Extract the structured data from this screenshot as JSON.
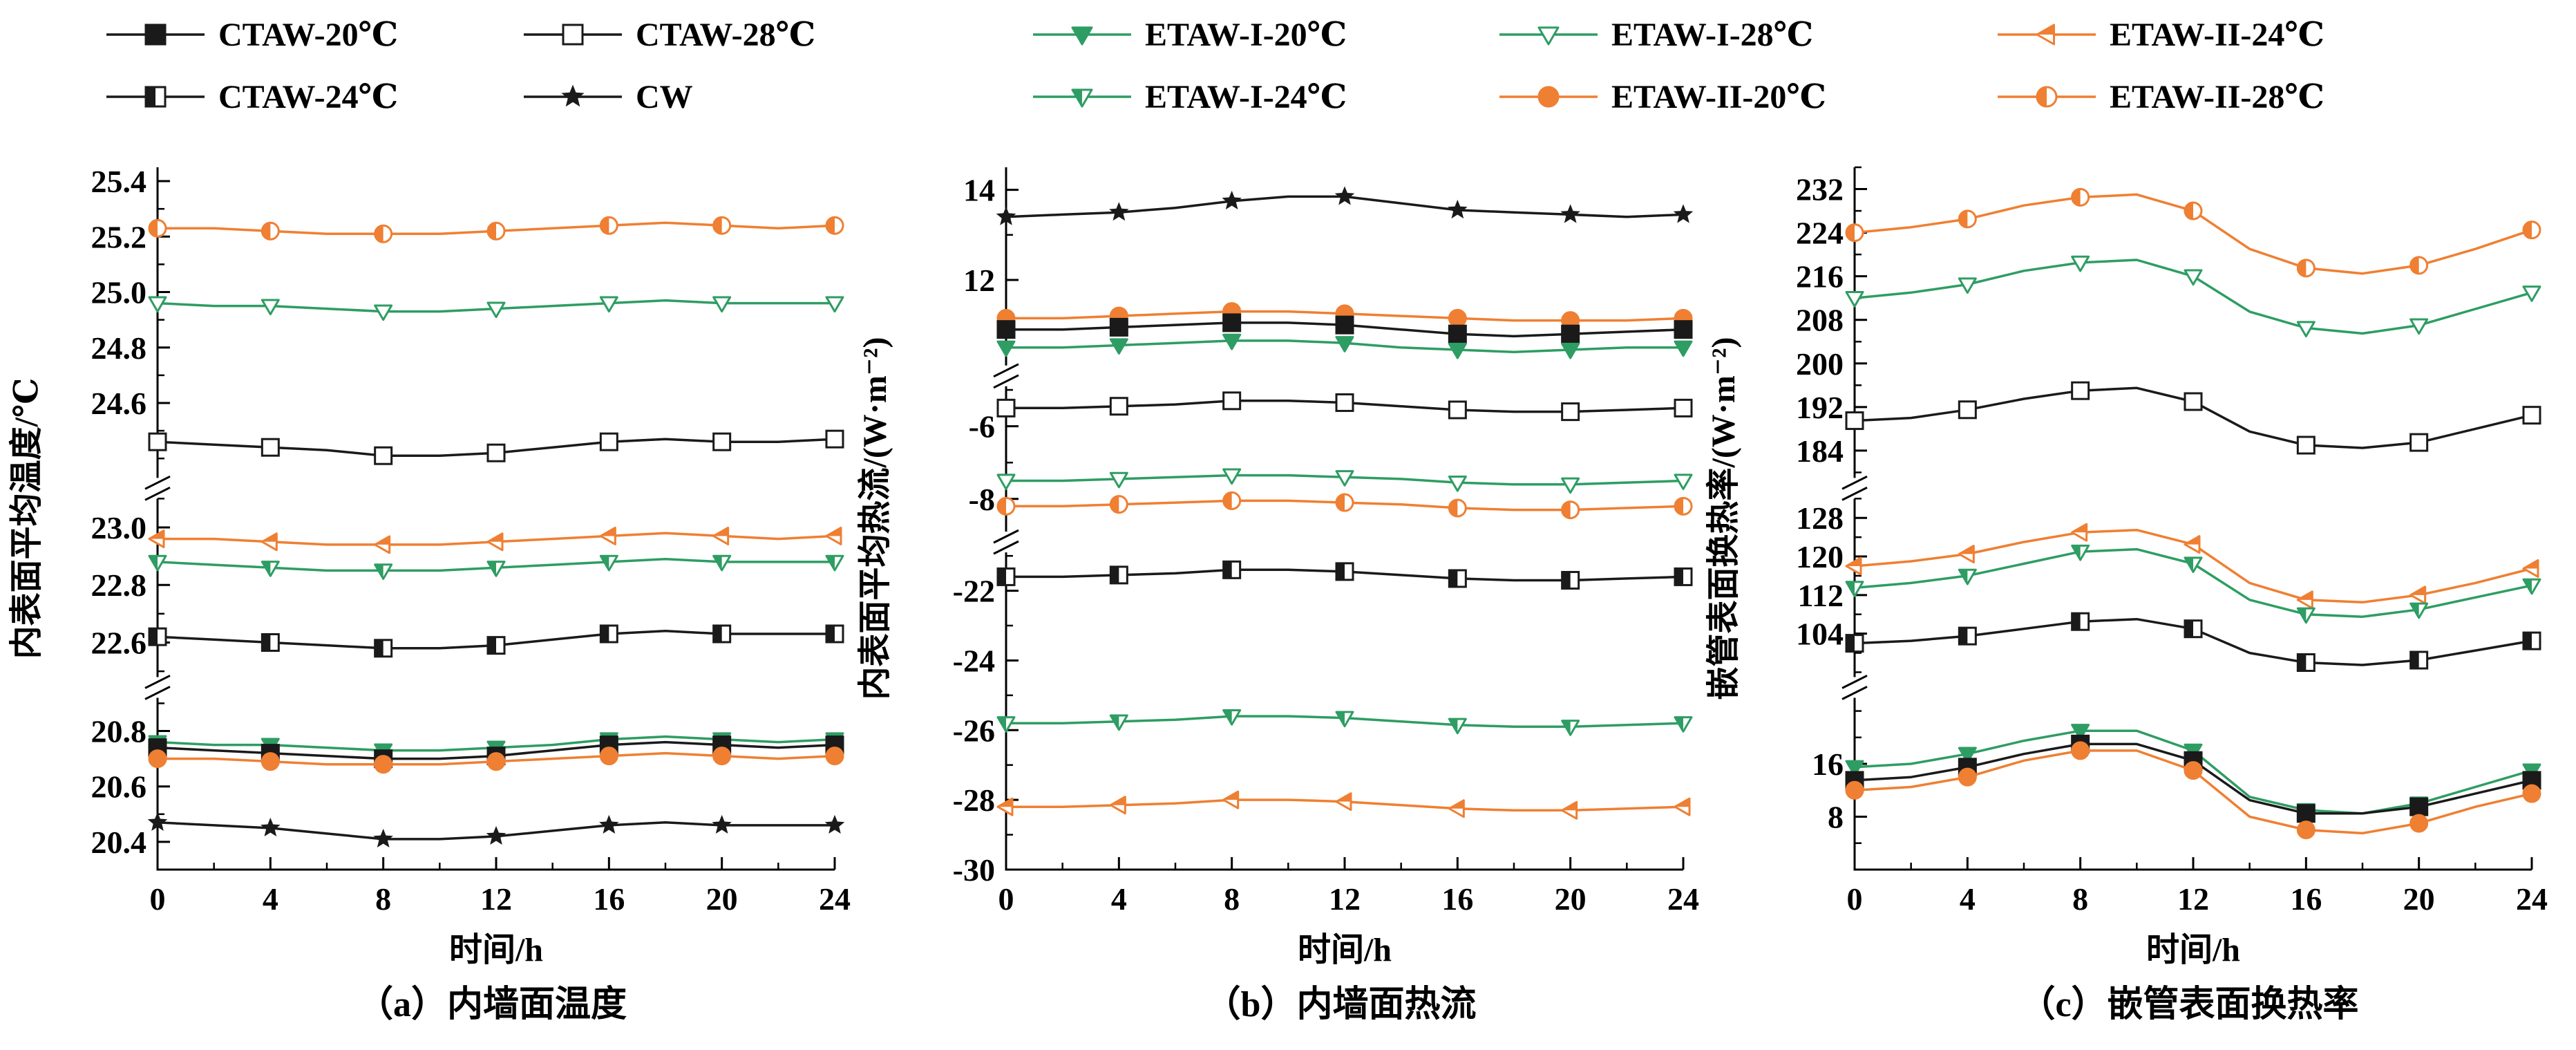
{
  "legend": {
    "items": [
      {
        "label": "CTAW-20℃",
        "marker": "square-filled",
        "color": "#1a1a1a"
      },
      {
        "label": "CTAW-28℃",
        "marker": "square-open",
        "color": "#1a1a1a"
      },
      {
        "label": "ETAW-I-20℃",
        "marker": "tri-down-filled",
        "color": "#2e9d63"
      },
      {
        "label": "ETAW-I-28℃",
        "marker": "tri-down-open",
        "color": "#2e9d63"
      },
      {
        "label": "ETAW-II-24℃",
        "marker": "tri-left-half",
        "color": "#ef7f32"
      },
      {
        "label": "CTAW-24℃",
        "marker": "square-half",
        "color": "#1a1a1a"
      },
      {
        "label": "CW",
        "marker": "star",
        "color": "#1a1a1a"
      },
      {
        "label": "ETAW-I-24℃",
        "marker": "tri-down-half",
        "color": "#2e9d63"
      },
      {
        "label": "ETAW-II-20℃",
        "marker": "circle-filled",
        "color": "#ef7f32"
      },
      {
        "label": "ETAW-II-28℃",
        "marker": "circle-half",
        "color": "#ef7f32"
      }
    ]
  },
  "chart_data": [
    {
      "type": "line",
      "panel": "a",
      "caption": "（a）内墙面温度",
      "xlabel": "时间/h",
      "ylabel": "内表面平均温度/℃",
      "x": [
        0,
        2,
        4,
        6,
        8,
        10,
        12,
        14,
        16,
        18,
        20,
        22,
        24
      ],
      "x_range": [
        0,
        24
      ],
      "x_ticks": [
        0,
        4,
        8,
        12,
        16,
        20,
        24
      ],
      "x_minor": 2,
      "tick_decimals": 1,
      "segments": [
        {
          "range": [
            24.33,
            25.45
          ],
          "ticks": [
            25.4,
            25.2,
            25.0,
            24.8,
            24.6
          ],
          "minor": 0.1,
          "frac": 0.47
        },
        {
          "range": [
            22.48,
            23.1
          ],
          "ticks": [
            23.0,
            22.8,
            22.6
          ],
          "minor": 0.1,
          "frac": 0.27
        },
        {
          "range": [
            20.3,
            20.92
          ],
          "ticks": [
            20.8,
            20.6,
            20.4
          ],
          "minor": 0.1,
          "frac": 0.26
        }
      ],
      "series": [
        {
          "name": "ETAW-II-28℃",
          "color": "#ef7f32",
          "marker": "circle-half",
          "segment": 0,
          "values": [
            25.23,
            25.23,
            25.22,
            25.21,
            25.21,
            25.21,
            25.22,
            25.23,
            25.24,
            25.25,
            25.24,
            25.23,
            25.24
          ]
        },
        {
          "name": "ETAW-I-28℃",
          "color": "#2e9d63",
          "marker": "tri-down-open",
          "segment": 0,
          "values": [
            24.96,
            24.95,
            24.95,
            24.94,
            24.93,
            24.93,
            24.94,
            24.95,
            24.96,
            24.97,
            24.96,
            24.96,
            24.96
          ]
        },
        {
          "name": "CTAW-28℃",
          "color": "#1a1a1a",
          "marker": "square-open",
          "segment": 0,
          "values": [
            24.46,
            24.45,
            24.44,
            24.43,
            24.41,
            24.41,
            24.42,
            24.44,
            24.46,
            24.47,
            24.46,
            24.46,
            24.47
          ]
        },
        {
          "name": "ETAW-II-24℃",
          "color": "#ef7f32",
          "marker": "tri-left-half",
          "segment": 1,
          "values": [
            22.96,
            22.96,
            22.95,
            22.94,
            22.94,
            22.94,
            22.95,
            22.96,
            22.97,
            22.98,
            22.97,
            22.96,
            22.97
          ]
        },
        {
          "name": "ETAW-I-24℃",
          "color": "#2e9d63",
          "marker": "tri-down-half",
          "segment": 1,
          "values": [
            22.88,
            22.87,
            22.86,
            22.85,
            22.85,
            22.85,
            22.86,
            22.87,
            22.88,
            22.89,
            22.88,
            22.88,
            22.88
          ]
        },
        {
          "name": "CTAW-24℃",
          "color": "#1a1a1a",
          "marker": "square-half",
          "segment": 1,
          "values": [
            22.62,
            22.61,
            22.6,
            22.59,
            22.58,
            22.58,
            22.59,
            22.61,
            22.63,
            22.64,
            22.63,
            22.63,
            22.63
          ]
        },
        {
          "name": "ETAW-I-20℃",
          "color": "#2e9d63",
          "marker": "tri-down-filled",
          "segment": 2,
          "values": [
            20.76,
            20.75,
            20.75,
            20.74,
            20.73,
            20.73,
            20.74,
            20.75,
            20.77,
            20.78,
            20.77,
            20.76,
            20.77
          ]
        },
        {
          "name": "CTAW-20℃",
          "color": "#1a1a1a",
          "marker": "square-filled",
          "segment": 2,
          "values": [
            20.74,
            20.73,
            20.72,
            20.71,
            20.7,
            20.7,
            20.71,
            20.73,
            20.75,
            20.76,
            20.75,
            20.74,
            20.75
          ]
        },
        {
          "name": "ETAW-II-20℃",
          "color": "#ef7f32",
          "marker": "circle-filled",
          "segment": 2,
          "values": [
            20.7,
            20.7,
            20.69,
            20.68,
            20.68,
            20.68,
            20.69,
            20.7,
            20.71,
            20.72,
            20.71,
            20.7,
            20.71
          ]
        },
        {
          "name": "CW",
          "color": "#1a1a1a",
          "marker": "star",
          "segment": 2,
          "values": [
            20.47,
            20.46,
            20.45,
            20.43,
            20.41,
            20.41,
            20.42,
            20.44,
            20.46,
            20.47,
            20.46,
            20.46,
            20.46
          ]
        }
      ]
    },
    {
      "type": "line",
      "panel": "b",
      "caption": "（b）内墙面热流",
      "xlabel": "时间/h",
      "ylabel": "内表面平均热流/(W·m⁻²)",
      "x": [
        0,
        2,
        4,
        6,
        8,
        10,
        12,
        14,
        16,
        18,
        20,
        22,
        24
      ],
      "x_range": [
        0,
        24
      ],
      "x_ticks": [
        0,
        4,
        8,
        12,
        16,
        20,
        24
      ],
      "x_minor": 2,
      "tick_decimals": 0,
      "segments": [
        {
          "range": [
            10.1,
            14.5
          ],
          "ticks": [
            14,
            12
          ],
          "minor": 1,
          "frac": 0.3
        },
        {
          "range": [
            -8.9,
            -4.9
          ],
          "ticks": [
            -6,
            -8
          ],
          "minor": 1,
          "frac": 0.22
        },
        {
          "range": [
            -30,
            -20.9
          ],
          "ticks": [
            -22,
            -24,
            -26,
            -28,
            -30
          ],
          "minor": 1,
          "frac": 0.48
        }
      ],
      "series": [
        {
          "name": "CW",
          "color": "#1a1a1a",
          "marker": "star",
          "segment": 0,
          "values": [
            13.4,
            13.45,
            13.5,
            13.6,
            13.75,
            13.85,
            13.85,
            13.7,
            13.55,
            13.5,
            13.45,
            13.4,
            13.45
          ]
        },
        {
          "name": "ETAW-II-20℃",
          "color": "#ef7f32",
          "marker": "circle-filled",
          "segment": 0,
          "values": [
            11.15,
            11.15,
            11.2,
            11.25,
            11.3,
            11.3,
            11.25,
            11.2,
            11.15,
            11.1,
            11.1,
            11.1,
            11.15
          ]
        },
        {
          "name": "CTAW-20℃",
          "color": "#1a1a1a",
          "marker": "square-filled",
          "segment": 0,
          "values": [
            10.9,
            10.9,
            10.95,
            11.0,
            11.05,
            11.05,
            11.0,
            10.9,
            10.8,
            10.75,
            10.8,
            10.85,
            10.9
          ]
        },
        {
          "name": "ETAW-I-20℃",
          "color": "#2e9d63",
          "marker": "tri-down-filled",
          "segment": 0,
          "values": [
            10.5,
            10.5,
            10.55,
            10.6,
            10.65,
            10.65,
            10.6,
            10.5,
            10.45,
            10.4,
            10.45,
            10.5,
            10.5
          ]
        },
        {
          "name": "CTAW-28℃",
          "color": "#1a1a1a",
          "marker": "square-open",
          "segment": 1,
          "values": [
            -5.5,
            -5.5,
            -5.45,
            -5.4,
            -5.3,
            -5.3,
            -5.35,
            -5.45,
            -5.55,
            -5.6,
            -5.6,
            -5.55,
            -5.5
          ]
        },
        {
          "name": "ETAW-I-28℃",
          "color": "#2e9d63",
          "marker": "tri-down-open",
          "segment": 1,
          "values": [
            -7.5,
            -7.5,
            -7.45,
            -7.4,
            -7.35,
            -7.35,
            -7.4,
            -7.45,
            -7.55,
            -7.6,
            -7.6,
            -7.55,
            -7.5
          ]
        },
        {
          "name": "ETAW-II-28℃",
          "color": "#ef7f32",
          "marker": "circle-half",
          "segment": 1,
          "values": [
            -8.2,
            -8.2,
            -8.15,
            -8.1,
            -8.05,
            -8.05,
            -8.1,
            -8.15,
            -8.25,
            -8.3,
            -8.3,
            -8.25,
            -8.2
          ]
        },
        {
          "name": "CTAW-24℃",
          "color": "#1a1a1a",
          "marker": "square-half",
          "segment": 2,
          "values": [
            -21.6,
            -21.6,
            -21.55,
            -21.5,
            -21.4,
            -21.4,
            -21.45,
            -21.55,
            -21.65,
            -21.7,
            -21.7,
            -21.65,
            -21.6
          ]
        },
        {
          "name": "ETAW-I-24℃",
          "color": "#2e9d63",
          "marker": "tri-down-half",
          "segment": 2,
          "values": [
            -25.8,
            -25.8,
            -25.75,
            -25.7,
            -25.6,
            -25.6,
            -25.65,
            -25.75,
            -25.85,
            -25.9,
            -25.9,
            -25.85,
            -25.8
          ]
        },
        {
          "name": "ETAW-II-24℃",
          "color": "#ef7f32",
          "marker": "tri-left-half",
          "segment": 2,
          "values": [
            -28.2,
            -28.2,
            -28.15,
            -28.1,
            -28.0,
            -28.0,
            -28.05,
            -28.15,
            -28.25,
            -28.3,
            -28.3,
            -28.25,
            -28.2
          ]
        }
      ]
    },
    {
      "type": "line",
      "panel": "c",
      "caption": "（c）嵌管表面换热率",
      "xlabel": "时间/h",
      "ylabel": "嵌管表面换热率/(W·m⁻²)",
      "x": [
        0,
        2,
        4,
        6,
        8,
        10,
        12,
        14,
        16,
        18,
        20,
        22,
        24
      ],
      "x_range": [
        0,
        24
      ],
      "x_ticks": [
        0,
        4,
        8,
        12,
        16,
        20,
        24
      ],
      "x_minor": 2,
      "tick_decimals": 0,
      "segments": [
        {
          "range": [
            179,
            236
          ],
          "ticks": [
            232,
            224,
            216,
            208,
            200,
            192,
            184
          ],
          "minor": 4,
          "frac": 0.47
        },
        {
          "range": [
            95,
            132
          ],
          "ticks": [
            128,
            120,
            112,
            104
          ],
          "minor": 4,
          "frac": 0.27
        },
        {
          "range": [
            0,
            26
          ],
          "ticks": [
            16,
            8
          ],
          "minor": 4,
          "frac": 0.26
        }
      ],
      "series": [
        {
          "name": "ETAW-II-28℃",
          "color": "#ef7f32",
          "marker": "circle-half",
          "segment": 0,
          "values": [
            224,
            225,
            226.5,
            229,
            230.5,
            231,
            228,
            221,
            217.5,
            216.5,
            218,
            221,
            224.5
          ]
        },
        {
          "name": "ETAW-I-28℃",
          "color": "#2e9d63",
          "marker": "tri-down-open",
          "segment": 0,
          "values": [
            212,
            213,
            214.5,
            217,
            218.5,
            219,
            216,
            209.5,
            206.5,
            205.5,
            207,
            210,
            213
          ]
        },
        {
          "name": "CTAW-28℃",
          "color": "#1a1a1a",
          "marker": "square-open",
          "segment": 0,
          "values": [
            189.5,
            190,
            191.5,
            193.5,
            195,
            195.5,
            193,
            187.5,
            185,
            184.5,
            185.5,
            188,
            190.5
          ]
        },
        {
          "name": "ETAW-II-24℃",
          "color": "#ef7f32",
          "marker": "tri-left-half",
          "segment": 1,
          "values": [
            118,
            119,
            120.5,
            123,
            125,
            125.5,
            122.5,
            114.5,
            111,
            110.5,
            112,
            114.5,
            117.5
          ]
        },
        {
          "name": "ETAW-I-24℃",
          "color": "#2e9d63",
          "marker": "tri-down-half",
          "segment": 1,
          "values": [
            113.5,
            114.5,
            116,
            118.5,
            121,
            121.5,
            118.5,
            111,
            108,
            107.5,
            109,
            111.5,
            114
          ]
        },
        {
          "name": "CTAW-24℃",
          "color": "#1a1a1a",
          "marker": "square-half",
          "segment": 1,
          "values": [
            102,
            102.5,
            103.5,
            105,
            106.5,
            107,
            105,
            100,
            98,
            97.5,
            98.5,
            100.5,
            102.5
          ]
        },
        {
          "name": "ETAW-I-20℃",
          "color": "#2e9d63",
          "marker": "tri-down-filled",
          "segment": 2,
          "values": [
            15.5,
            16,
            17.5,
            19.5,
            21,
            21,
            18,
            11,
            9,
            8.5,
            10,
            12.5,
            15
          ]
        },
        {
          "name": "CTAW-20℃",
          "color": "#1a1a1a",
          "marker": "square-filled",
          "segment": 2,
          "values": [
            13.5,
            14,
            15.5,
            17.5,
            19,
            19,
            16.5,
            10.5,
            8.5,
            8.5,
            9.5,
            11.5,
            13.5
          ]
        },
        {
          "name": "ETAW-II-20℃",
          "color": "#ef7f32",
          "marker": "circle-filled",
          "segment": 2,
          "values": [
            12,
            12.5,
            14,
            16.5,
            18,
            18,
            15,
            8,
            6,
            5.5,
            7,
            9.5,
            11.5
          ]
        }
      ]
    }
  ]
}
